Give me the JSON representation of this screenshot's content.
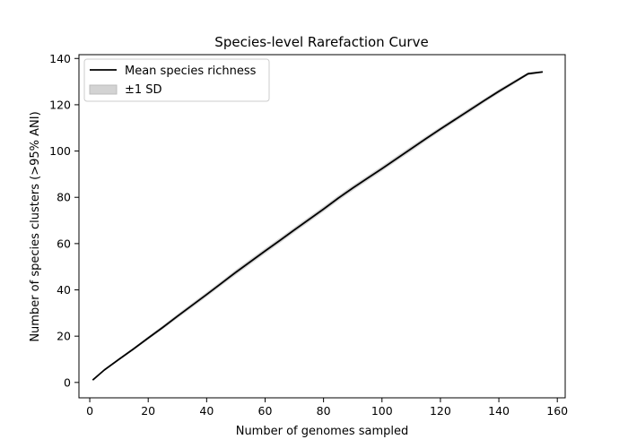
{
  "chart_data": {
    "type": "line",
    "title": "Species-level Rarefaction Curve",
    "xlabel": "Number of genomes sampled",
    "ylabel": "Number of species clusters (>95% ANI)",
    "xlim": [
      -3.7,
      162.7
    ],
    "ylim": [
      -6.65,
      141.65
    ],
    "xticks": [
      0,
      20,
      40,
      60,
      80,
      100,
      120,
      140,
      160
    ],
    "yticks": [
      0,
      20,
      40,
      60,
      80,
      100,
      120,
      140
    ],
    "grid": false,
    "legend_position": "top-left",
    "x": [
      1,
      5,
      10,
      15,
      20,
      25,
      30,
      35,
      40,
      45,
      50,
      55,
      60,
      65,
      70,
      75,
      80,
      85,
      90,
      95,
      100,
      105,
      110,
      115,
      120,
      125,
      130,
      135,
      140,
      145,
      150,
      155
    ],
    "series": [
      {
        "name": "Mean species richness",
        "kind": "line",
        "color": "#000000",
        "values": [
          1.0,
          5.4,
          10.0,
          14.5,
          19.2,
          23.8,
          28.6,
          33.3,
          38.0,
          42.8,
          47.6,
          52.2,
          56.8,
          61.3,
          65.9,
          70.4,
          74.9,
          79.6,
          84.0,
          88.2,
          92.4,
          96.7,
          101.0,
          105.3,
          109.5,
          113.6,
          117.7,
          121.8,
          125.8,
          129.6,
          133.4,
          134.2
        ]
      },
      {
        "name": "±1 SD",
        "kind": "band",
        "color": "#bfbfbf",
        "sd": [
          0.0,
          0.3,
          0.5,
          0.6,
          0.7,
          0.8,
          0.9,
          1.0,
          1.0,
          1.0,
          1.1,
          1.1,
          1.1,
          1.1,
          1.1,
          1.1,
          1.1,
          1.1,
          1.1,
          1.1,
          1.1,
          1.1,
          1.1,
          1.0,
          1.0,
          1.0,
          1.0,
          0.9,
          0.9,
          0.8,
          0.6,
          0.4
        ]
      }
    ]
  }
}
